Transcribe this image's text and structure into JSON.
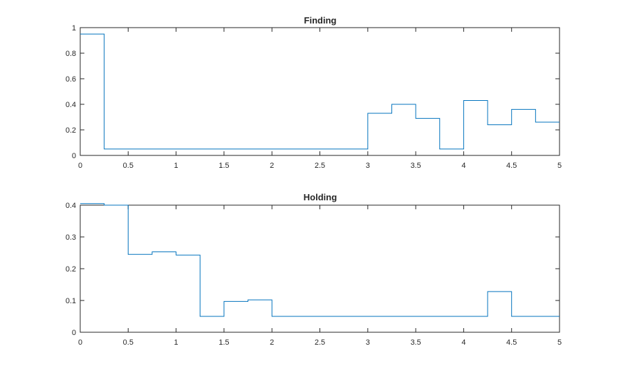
{
  "chart_data": [
    {
      "type": "line",
      "style": "stairs",
      "title": "Finding",
      "xlabel": "",
      "ylabel": "",
      "xlim": [
        0,
        5
      ],
      "ylim": [
        0,
        1
      ],
      "xticks": [
        "0",
        "0.5",
        "1",
        "1.5",
        "2",
        "2.5",
        "3",
        "3.5",
        "4",
        "4.5",
        "5"
      ],
      "yticks": [
        "0",
        "0.2",
        "0.4",
        "0.6",
        "0.8",
        "1"
      ],
      "grid": false,
      "line_color": "#0072BD",
      "x": [
        0,
        0.25,
        0.5,
        0.75,
        1,
        1.25,
        1.5,
        1.75,
        2,
        2.25,
        2.5,
        2.75,
        3,
        3.25,
        3.5,
        3.75,
        4,
        4.25,
        4.5,
        4.75,
        5
      ],
      "values": [
        0.95,
        0.05,
        0.05,
        0.05,
        0.05,
        0.05,
        0.05,
        0.05,
        0.05,
        0.05,
        0.05,
        0.05,
        0.33,
        0.4,
        0.29,
        0.05,
        0.43,
        0.24,
        0.36,
        0.26,
        0.26
      ]
    },
    {
      "type": "line",
      "style": "stairs",
      "title": "Holding",
      "xlabel": "",
      "ylabel": "",
      "xlim": [
        0,
        5
      ],
      "ylim": [
        0,
        0.4
      ],
      "xticks": [
        "0",
        "0.5",
        "1",
        "1.5",
        "2",
        "2.5",
        "3",
        "3.5",
        "4",
        "4.5",
        "5"
      ],
      "yticks": [
        "0",
        "0.1",
        "0.2",
        "0.3",
        "0.4"
      ],
      "grid": false,
      "line_color": "#0072BD",
      "x": [
        0,
        0.25,
        0.5,
        0.75,
        1,
        1.25,
        1.5,
        1.75,
        2,
        2.25,
        2.5,
        2.75,
        3,
        3.25,
        3.5,
        3.75,
        4,
        4.25,
        4.5,
        4.75,
        5
      ],
      "values": [
        0.405,
        0.4,
        0.245,
        0.253,
        0.243,
        0.05,
        0.097,
        0.102,
        0.05,
        0.05,
        0.05,
        0.05,
        0.05,
        0.05,
        0.05,
        0.05,
        0.05,
        0.128,
        0.05,
        0.05,
        0.05
      ]
    }
  ]
}
